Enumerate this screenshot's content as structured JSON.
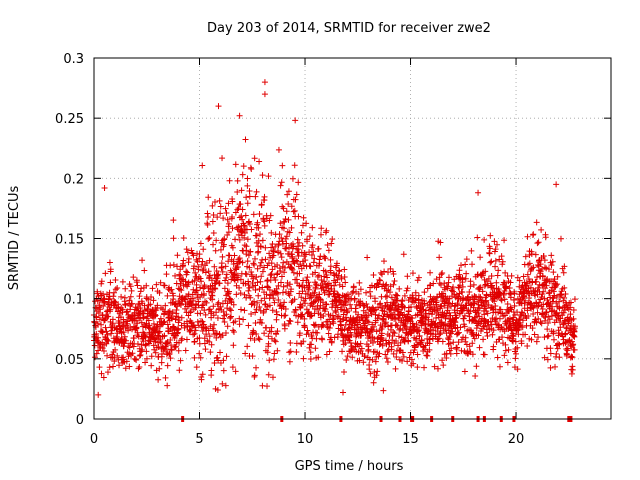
{
  "chart_data": {
    "type": "scatter",
    "title": "Day 203 of 2014, SRMTID for receiver zwe2",
    "xlabel": "GPS time / hours",
    "ylabel": "SRMTID / TECUs",
    "xlim": [
      0,
      24.5
    ],
    "ylim": [
      0,
      0.3
    ],
    "xticks": [
      0,
      5,
      10,
      15,
      20
    ],
    "xtick_labels": [
      "0",
      "5",
      "10",
      "15",
      "20"
    ],
    "yticks": [
      0,
      0.05,
      0.1,
      0.15,
      0.2,
      0.25,
      0.3
    ],
    "ytick_labels": [
      "0",
      "0.05",
      "0.1",
      "0.15",
      "0.2",
      "0.25",
      "0.3"
    ],
    "grid": true,
    "marker": "+",
    "point_color": "#e00000",
    "series_hourly_envelope": {
      "hours": [
        0,
        0.5,
        1,
        1.5,
        2,
        2.5,
        3,
        3.5,
        4,
        4.5,
        5,
        5.5,
        6,
        6.5,
        7,
        7.5,
        8,
        8.5,
        9,
        9.5,
        10,
        10.5,
        11,
        11.5,
        12,
        12.5,
        13,
        13.5,
        14,
        14.5,
        15,
        15.5,
        16,
        16.5,
        17,
        17.5,
        18,
        18.5,
        19,
        19.5,
        20,
        20.5,
        21,
        21.5,
        22,
        22.5
      ],
      "median": [
        0.075,
        0.08,
        0.078,
        0.075,
        0.08,
        0.078,
        0.07,
        0.075,
        0.09,
        0.1,
        0.1,
        0.1,
        0.11,
        0.13,
        0.14,
        0.12,
        0.115,
        0.11,
        0.12,
        0.13,
        0.11,
        0.1,
        0.105,
        0.1,
        0.08,
        0.075,
        0.075,
        0.08,
        0.085,
        0.08,
        0.08,
        0.08,
        0.085,
        0.09,
        0.085,
        0.09,
        0.09,
        0.095,
        0.1,
        0.095,
        0.08,
        0.1,
        0.11,
        0.1,
        0.09,
        0.07
      ],
      "spread": [
        0.03,
        0.04,
        0.03,
        0.03,
        0.03,
        0.03,
        0.03,
        0.035,
        0.04,
        0.04,
        0.05,
        0.06,
        0.07,
        0.07,
        0.07,
        0.07,
        0.08,
        0.06,
        0.06,
        0.06,
        0.05,
        0.04,
        0.04,
        0.04,
        0.03,
        0.03,
        0.03,
        0.04,
        0.035,
        0.03,
        0.03,
        0.03,
        0.03,
        0.035,
        0.03,
        0.035,
        0.04,
        0.035,
        0.04,
        0.035,
        0.03,
        0.035,
        0.04,
        0.04,
        0.04,
        0.025
      ]
    },
    "peaks": [
      {
        "x": 0.2,
        "y": 0.02
      },
      {
        "x": 0.5,
        "y": 0.192
      },
      {
        "x": 5.9,
        "y": 0.26
      },
      {
        "x": 6.9,
        "y": 0.252
      },
      {
        "x": 8.1,
        "y": 0.28
      },
      {
        "x": 8.1,
        "y": 0.27
      },
      {
        "x": 7.6,
        "y": 0.035
      },
      {
        "x": 11.8,
        "y": 0.022
      },
      {
        "x": 18.2,
        "y": 0.188
      },
      {
        "x": 21.9,
        "y": 0.195
      }
    ],
    "gap_markers_y": 0,
    "gap_marker_color": "#e00000",
    "gap_markers_x": [
      4.2,
      8.9,
      11.7,
      13.6,
      14.5,
      15.05,
      15.1,
      16.0,
      17.0,
      18.2,
      18.5,
      19.3,
      19.9,
      22.5,
      22.6
    ]
  }
}
